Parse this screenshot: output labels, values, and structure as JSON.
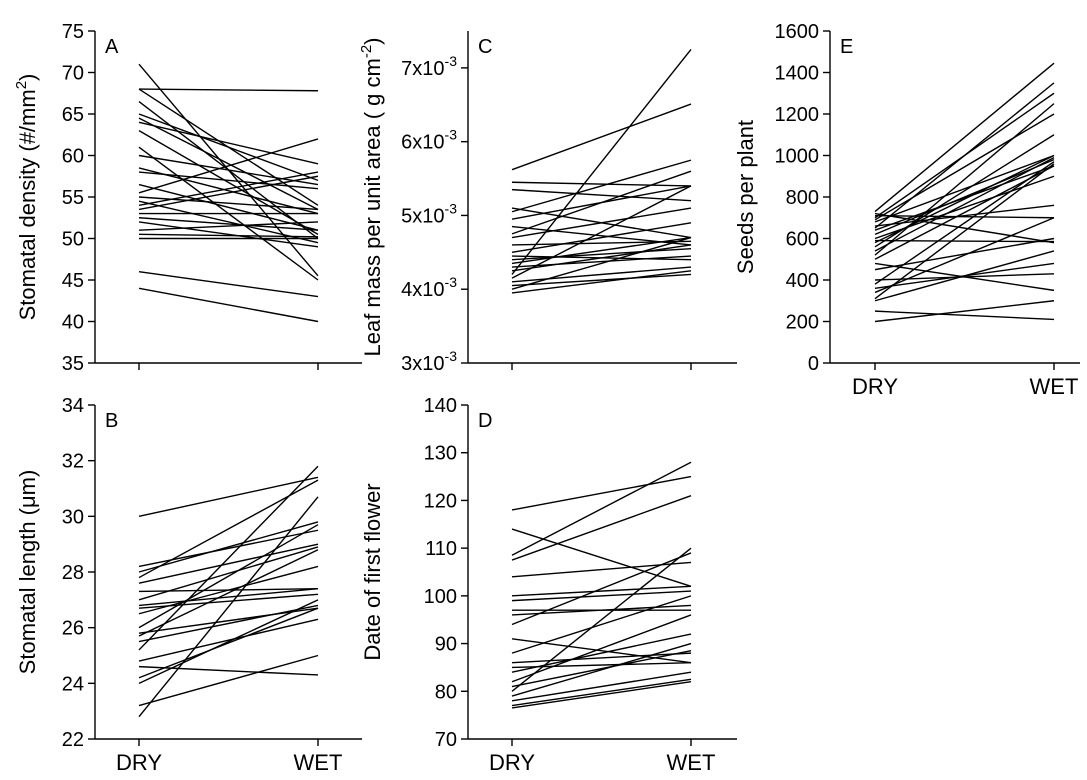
{
  "chart_data": [
    {
      "panel": "A",
      "type": "line",
      "ylabel": "Stomatal density (#/mm",
      "ylabel_sup": "2",
      "ylabel_end": ")",
      "categories": [
        "DRY",
        "WET"
      ],
      "ylim": [
        35,
        75
      ],
      "yticks": [
        "35",
        "40",
        "45",
        "50",
        "55",
        "60",
        "65",
        "70",
        "75"
      ],
      "series": [
        {
          "values": [
            71.0,
            45.5
          ]
        },
        {
          "values": [
            68.0,
            67.8
          ]
        },
        {
          "values": [
            68.0,
            54.0
          ]
        },
        {
          "values": [
            66.5,
            50.0
          ]
        },
        {
          "values": [
            65.0,
            57.0
          ]
        },
        {
          "values": [
            64.5,
            53.5
          ]
        },
        {
          "values": [
            64.0,
            59.0
          ]
        },
        {
          "values": [
            63.0,
            50.5
          ]
        },
        {
          "values": [
            61.0,
            45.0
          ]
        },
        {
          "values": [
            60.0,
            56.5
          ]
        },
        {
          "values": [
            58.5,
            53.0
          ]
        },
        {
          "values": [
            58.0,
            56.0
          ]
        },
        {
          "values": [
            56.5,
            51.0
          ]
        },
        {
          "values": [
            55.5,
            62.0
          ]
        },
        {
          "values": [
            55.0,
            53.5
          ]
        },
        {
          "values": [
            54.5,
            49.5
          ]
        },
        {
          "values": [
            54.0,
            58.0
          ]
        },
        {
          "values": [
            53.5,
            57.5
          ]
        },
        {
          "values": [
            53.0,
            53.0
          ]
        },
        {
          "values": [
            52.5,
            51.0
          ]
        },
        {
          "values": [
            52.0,
            49.0
          ]
        },
        {
          "values": [
            51.0,
            52.0
          ]
        },
        {
          "values": [
            50.5,
            50.2
          ]
        },
        {
          "values": [
            50.0,
            50.0
          ]
        },
        {
          "values": [
            46.0,
            43.0
          ]
        },
        {
          "values": [
            44.0,
            40.0
          ]
        }
      ]
    },
    {
      "panel": "B",
      "type": "line",
      "ylabel": "Stomatal length (μm)",
      "categories": [
        "DRY",
        "WET"
      ],
      "ylim": [
        22,
        34
      ],
      "yticks": [
        "22",
        "24",
        "26",
        "28",
        "30",
        "32",
        "34"
      ],
      "series": [
        {
          "values": [
            30.0,
            31.4
          ]
        },
        {
          "values": [
            28.2,
            29.5
          ]
        },
        {
          "values": [
            28.0,
            29.8
          ]
        },
        {
          "values": [
            27.8,
            31.3
          ]
        },
        {
          "values": [
            27.6,
            29.0
          ]
        },
        {
          "values": [
            27.3,
            27.4
          ]
        },
        {
          "values": [
            27.0,
            28.9
          ]
        },
        {
          "values": [
            26.8,
            27.4
          ]
        },
        {
          "values": [
            26.7,
            27.2
          ]
        },
        {
          "values": [
            26.5,
            28.2
          ]
        },
        {
          "values": [
            26.0,
            29.7
          ]
        },
        {
          "values": [
            25.8,
            26.7
          ]
        },
        {
          "values": [
            25.7,
            28.8
          ]
        },
        {
          "values": [
            25.5,
            26.8
          ]
        },
        {
          "values": [
            25.2,
            31.8
          ]
        },
        {
          "values": [
            24.8,
            26.3
          ]
        },
        {
          "values": [
            24.6,
            24.3
          ]
        },
        {
          "values": [
            24.2,
            26.7
          ]
        },
        {
          "values": [
            24.0,
            27.0
          ]
        },
        {
          "values": [
            23.2,
            25.0
          ]
        },
        {
          "values": [
            22.8,
            30.7
          ]
        }
      ]
    },
    {
      "panel": "C",
      "type": "line",
      "ylabel": "Leaf mass per unit area ( g cm",
      "ylabel_sup": "-2",
      "ylabel_end": ")",
      "categories": [
        "DRY",
        "WET"
      ],
      "ylim": [
        0.003,
        0.0075
      ],
      "ytick_values": [
        0.003,
        0.004,
        0.005,
        0.006,
        0.007
      ],
      "ytick_base": [
        "3x10",
        "4x10",
        "5x10",
        "6x10",
        "7x10"
      ],
      "ytick_exp": [
        "-3",
        "-3",
        "-3",
        "-3",
        "-3"
      ],
      "series": [
        {
          "values": [
            0.00562,
            0.00651
          ]
        },
        {
          "values": [
            0.00545,
            0.0054
          ]
        },
        {
          "values": [
            0.00535,
            0.0052
          ]
        },
        {
          "values": [
            0.0051,
            0.0047
          ]
        },
        {
          "values": [
            0.00505,
            0.00575
          ]
        },
        {
          "values": [
            0.00495,
            0.0054
          ]
        },
        {
          "values": [
            0.00485,
            0.0046
          ]
        },
        {
          "values": [
            0.00475,
            0.0056
          ]
        },
        {
          "values": [
            0.0047,
            0.0051
          ]
        },
        {
          "values": [
            0.0046,
            0.00465
          ]
        },
        {
          "values": [
            0.0045,
            0.0049
          ]
        },
        {
          "values": [
            0.00445,
            0.0044
          ]
        },
        {
          "values": [
            0.0044,
            0.00455
          ]
        },
        {
          "values": [
            0.00435,
            0.0047
          ]
        },
        {
          "values": [
            0.0043,
            0.00445
          ]
        },
        {
          "values": [
            0.00425,
            0.0046
          ]
        },
        {
          "values": [
            0.0042,
            0.00725
          ]
        },
        {
          "values": [
            0.00415,
            0.0054
          ]
        },
        {
          "values": [
            0.0041,
            0.0043
          ]
        },
        {
          "values": [
            0.00405,
            0.0042
          ]
        },
        {
          "values": [
            0.004,
            0.0047
          ]
        },
        {
          "values": [
            0.00395,
            0.00425
          ]
        }
      ]
    },
    {
      "panel": "D",
      "type": "line",
      "ylabel": "Date of first flower",
      "categories": [
        "DRY",
        "WET"
      ],
      "ylim": [
        70,
        140
      ],
      "yticks": [
        "70",
        "80",
        "90",
        "100",
        "110",
        "120",
        "130",
        "140"
      ],
      "series": [
        {
          "values": [
            118.0,
            125.0
          ]
        },
        {
          "values": [
            114.0,
            102.0
          ]
        },
        {
          "values": [
            108.5,
            128.0
          ]
        },
        {
          "values": [
            107.5,
            121.0
          ]
        },
        {
          "values": [
            104.0,
            107.0
          ]
        },
        {
          "values": [
            100.0,
            102.0
          ]
        },
        {
          "values": [
            99.0,
            101.0
          ]
        },
        {
          "values": [
            97.0,
            97.0
          ]
        },
        {
          "values": [
            96.0,
            98.0
          ]
        },
        {
          "values": [
            94.0,
            109.0
          ]
        },
        {
          "values": [
            91.0,
            86.0
          ]
        },
        {
          "values": [
            88.0,
            100.0
          ]
        },
        {
          "values": [
            86.0,
            88.0
          ]
        },
        {
          "values": [
            85.0,
            86.0
          ]
        },
        {
          "values": [
            84.0,
            92.0
          ]
        },
        {
          "values": [
            82.0,
            96.0
          ]
        },
        {
          "values": [
            81.0,
            88.5
          ]
        },
        {
          "values": [
            80.0,
            110.0
          ]
        },
        {
          "values": [
            79.0,
            90.0
          ]
        },
        {
          "values": [
            78.0,
            84.0
          ]
        },
        {
          "values": [
            77.0,
            82.5
          ]
        },
        {
          "values": [
            76.5,
            82.0
          ]
        }
      ]
    },
    {
      "panel": "E",
      "type": "line",
      "ylabel": "Seeds per plant",
      "categories": [
        "DRY",
        "WET"
      ],
      "ylim": [
        0,
        1600
      ],
      "yticks": [
        "0",
        "200",
        "400",
        "600",
        "800",
        "1000",
        "1200",
        "1400",
        "1600"
      ],
      "series": [
        {
          "values": [
            730,
            1445
          ]
        },
        {
          "values": [
            720,
            580
          ]
        },
        {
          "values": [
            710,
            700
          ]
        },
        {
          "values": [
            700,
            1300
          ]
        },
        {
          "values": [
            690,
            1200
          ]
        },
        {
          "values": [
            680,
            1000
          ]
        },
        {
          "values": [
            660,
            760
          ]
        },
        {
          "values": [
            650,
            1350
          ]
        },
        {
          "values": [
            640,
            950
          ]
        },
        {
          "values": [
            620,
            980
          ]
        },
        {
          "values": [
            600,
            900
          ]
        },
        {
          "values": [
            590,
            585
          ]
        },
        {
          "values": [
            580,
            1000
          ]
        },
        {
          "values": [
            560,
            1100
          ]
        },
        {
          "values": [
            540,
            990
          ]
        },
        {
          "values": [
            520,
            1250
          ]
        },
        {
          "values": [
            500,
            950
          ]
        },
        {
          "values": [
            480,
            350
          ]
        },
        {
          "values": [
            450,
            600
          ]
        },
        {
          "values": [
            400,
            430
          ]
        },
        {
          "values": [
            380,
            970
          ]
        },
        {
          "values": [
            360,
            480
          ]
        },
        {
          "values": [
            340,
            700
          ]
        },
        {
          "values": [
            310,
            960
          ]
        },
        {
          "values": [
            300,
            540
          ]
        },
        {
          "values": [
            250,
            210
          ]
        },
        {
          "values": [
            200,
            300
          ]
        }
      ]
    }
  ]
}
